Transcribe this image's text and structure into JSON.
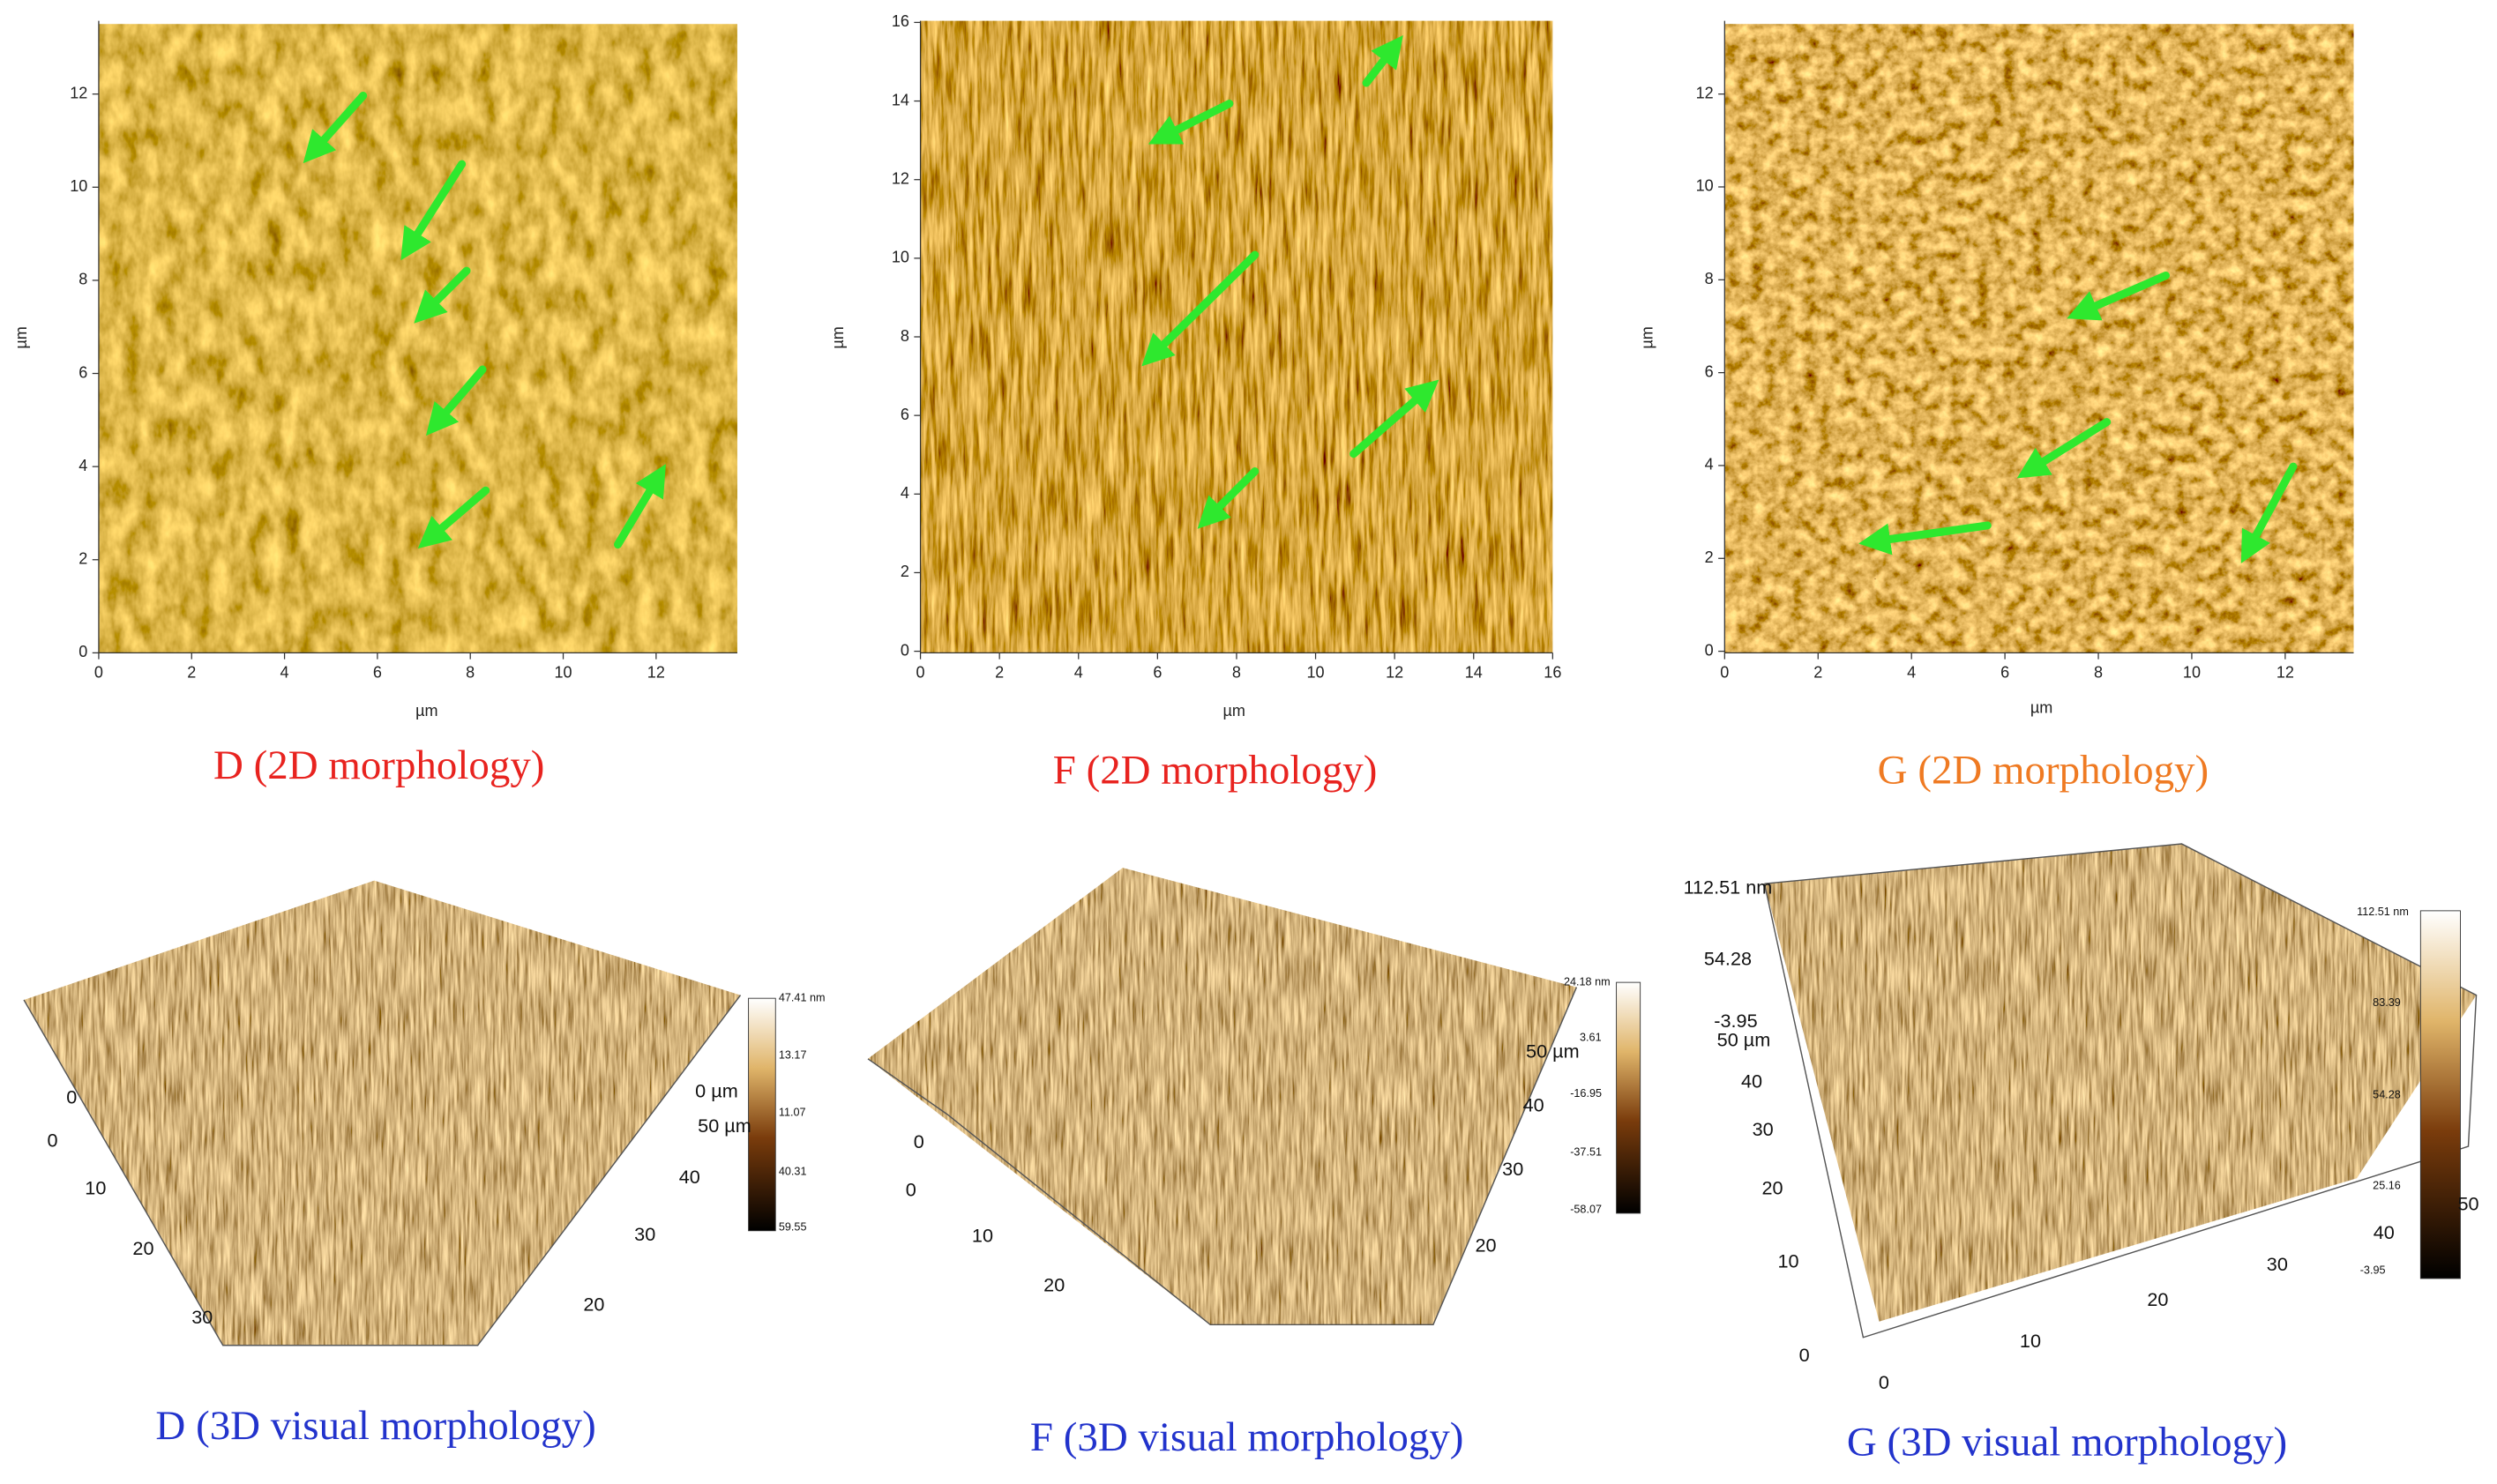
{
  "panels_2d": [
    {
      "caption": "D (2D  morphology)",
      "x_label": "µm",
      "y_label": "µm",
      "x_ticks": [
        "0",
        "2",
        "4",
        "6",
        "8",
        "10",
        "12"
      ],
      "y_ticks": [
        "0",
        "2",
        "4",
        "6",
        "8",
        "10",
        "12"
      ]
    },
    {
      "caption": "F (2D  morphology)",
      "x_label": "µm",
      "y_label": "µm",
      "x_ticks": [
        "0",
        "2",
        "4",
        "6",
        "8",
        "10",
        "12",
        "14",
        "16"
      ],
      "y_ticks": [
        "0",
        "2",
        "4",
        "6",
        "8",
        "10",
        "12",
        "14",
        "16"
      ]
    },
    {
      "caption": "G (2D morphology)",
      "x_label": "µm",
      "y_label": "µm",
      "x_ticks": [
        "0",
        "2",
        "4",
        "6",
        "8",
        "10",
        "12"
      ],
      "y_ticks": [
        "0",
        "2",
        "4",
        "6",
        "8",
        "10",
        "12"
      ]
    }
  ],
  "panels_3d": [
    {
      "caption": "D (3D visual morphology)",
      "axis_labels": [
        "0",
        "0",
        "10",
        "20",
        "30",
        "20",
        "30",
        "40",
        "50 µm",
        "0 µm"
      ],
      "colorbar_labels": [
        "47.41 nm",
        "13.17",
        "11.07",
        "40.31",
        "59.55"
      ]
    },
    {
      "caption": "F (3D visual morphology)",
      "axis_labels": [
        "0",
        "0",
        "10",
        "20",
        "20",
        "30",
        "40",
        "50 µm"
      ],
      "colorbar_labels": [
        "24.18 nm",
        "3.61",
        "-16.95",
        "-37.51",
        "-58.07"
      ]
    },
    {
      "caption": "G (3D visual morphology)",
      "axis_labels": [
        "112.51 nm",
        "54.28",
        "-3.95",
        "50 µm",
        "40",
        "30",
        "20",
        "10",
        "0",
        "0",
        "10",
        "20",
        "30",
        "40",
        "50"
      ],
      "colorbar_labels": [
        "112.51 nm",
        "83.39",
        "54.28",
        "25.16",
        "-3.95"
      ]
    }
  ]
}
